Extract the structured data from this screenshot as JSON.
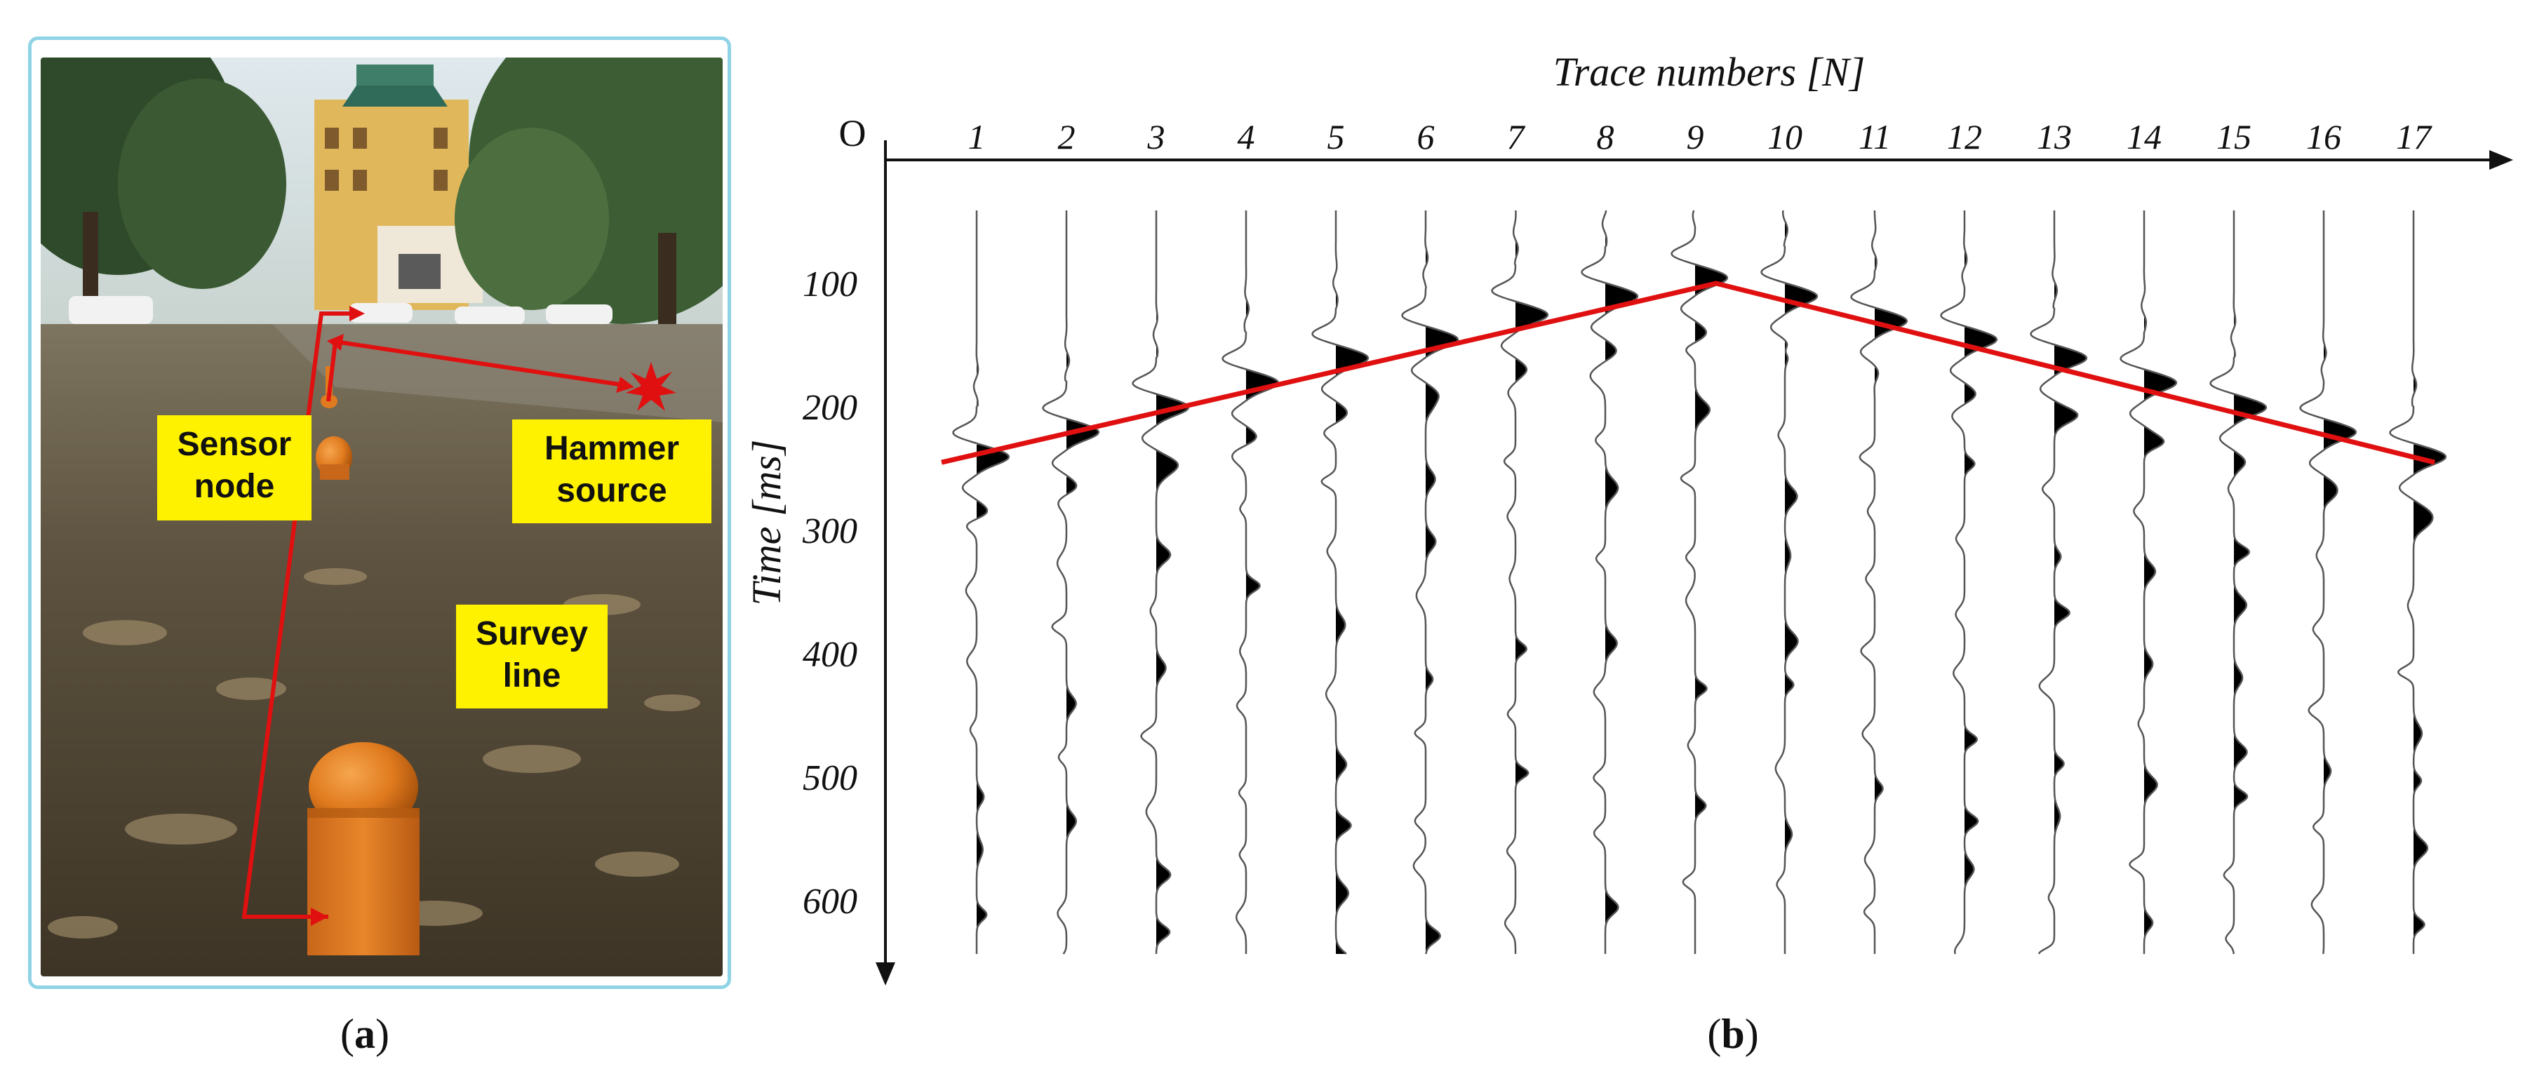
{
  "panel_a": {
    "labels": {
      "sensor": [
        "Sensor",
        "node"
      ],
      "hammer": [
        "Hammer",
        "source"
      ],
      "survey": [
        "Survey",
        "line"
      ]
    },
    "caption_letter": "a",
    "colors": {
      "frame": "#8fd3e6",
      "label_bg": "#fff200",
      "arrow": "#e01010",
      "sensor": "#e07a1e"
    }
  },
  "panel_b": {
    "caption_letter": "b",
    "x_axis_title": "Trace numbers [N]",
    "y_axis_title": "Time [ms]",
    "origin_label": "O",
    "trace_numbers": [
      "1",
      "2",
      "3",
      "4",
      "5",
      "6",
      "7",
      "8",
      "9",
      "10",
      "11",
      "12",
      "13",
      "14",
      "15",
      "16",
      "17"
    ],
    "time_ticks": [
      "100",
      "200",
      "300",
      "400",
      "500",
      "600"
    ],
    "time_tick_values": [
      100,
      200,
      300,
      400,
      500,
      600
    ],
    "first_break_ms": [
      245,
      225,
      205,
      185,
      165,
      150,
      130,
      115,
      100,
      115,
      135,
      150,
      165,
      185,
      205,
      225,
      245
    ],
    "pick_line_color": "#e01010"
  }
}
